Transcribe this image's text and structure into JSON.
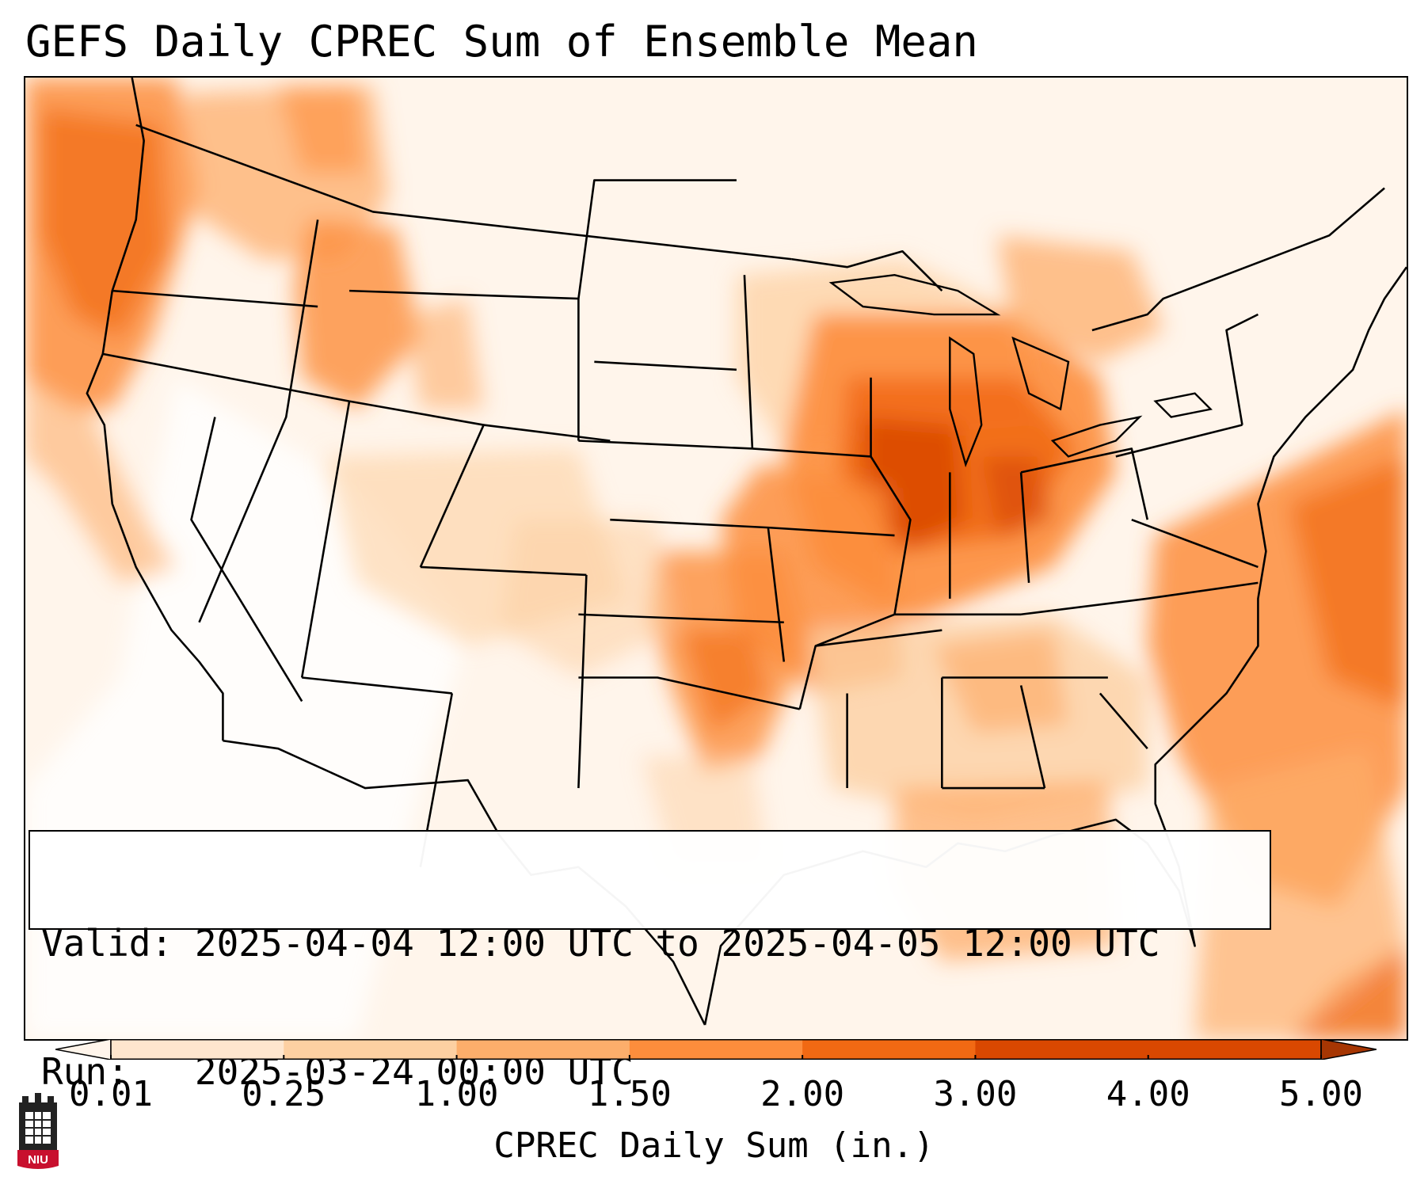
{
  "title": "GEFS Daily CPREC Sum of Ensemble Mean",
  "info": {
    "valid_label": "Valid:",
    "valid_value": "2025-04-04 12:00 UTC to 2025-04-05 12:00 UTC",
    "run_label": "Run:",
    "run_value": "2025-03-24 00:00 UTC"
  },
  "colorbar": {
    "label": "CPREC Daily Sum (in.)",
    "ticks": [
      "0.01",
      "0.25",
      "1.00",
      "1.50",
      "2.00",
      "3.00",
      "4.00",
      "5.00"
    ],
    "colors": [
      "#fff5eb",
      "#fee6ce",
      "#fdd0a2",
      "#fdae6b",
      "#fd8d3c",
      "#f16913",
      "#d94801",
      "#a63603"
    ],
    "extend": "both"
  },
  "logo": {
    "text": "NIU",
    "color": "#c8102e"
  },
  "map": {
    "region": "Contiguous United States",
    "precip_regions": [
      {
        "name": "pacific-northwest",
        "level": 4
      },
      {
        "name": "idaho-panhandle",
        "level": 3
      },
      {
        "name": "great-lakes-ohio-valley",
        "level": 5
      },
      {
        "name": "mid-mississippi-valley",
        "level": 6
      },
      {
        "name": "arkansas-missouri",
        "level": 4
      },
      {
        "name": "oklahoma-east-texas",
        "level": 4
      },
      {
        "name": "gulf-coast",
        "level": 3
      },
      {
        "name": "western-atlantic",
        "level": 4
      },
      {
        "name": "bahamas-caribbean",
        "level": 5
      }
    ]
  }
}
